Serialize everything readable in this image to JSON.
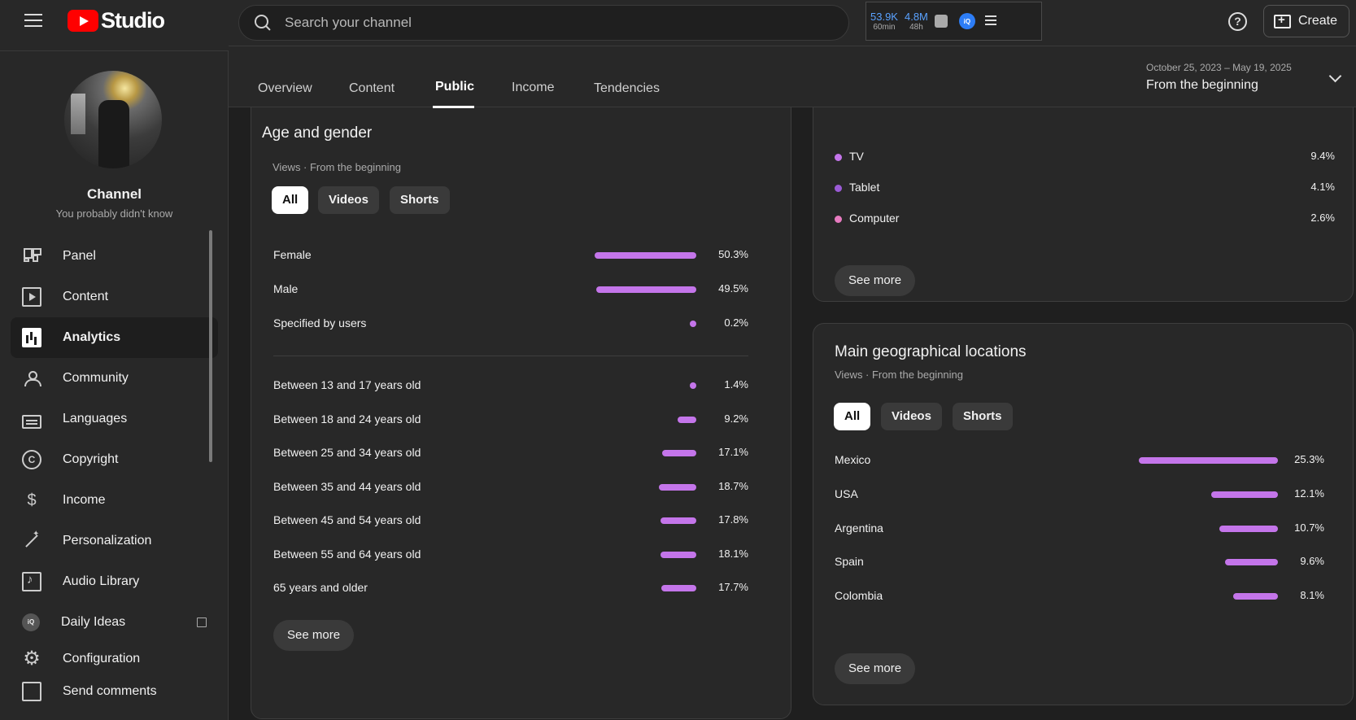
{
  "header": {
    "logo_text": "Studio",
    "search_placeholder": "Search your channel",
    "stats": [
      {
        "value": "53.9K",
        "label": "60min"
      },
      {
        "value": "4.8M",
        "label": "48h"
      }
    ],
    "iq_label": "iQ",
    "create_label": "Create"
  },
  "channel": {
    "name": "Channel",
    "subtitle": "You probably didn't know"
  },
  "nav": [
    {
      "label": "Panel"
    },
    {
      "label": "Content"
    },
    {
      "label": "Analytics"
    },
    {
      "label": "Community"
    },
    {
      "label": "Languages"
    },
    {
      "label": "Copyright"
    },
    {
      "label": "Income"
    },
    {
      "label": "Personalization"
    },
    {
      "label": "Audio Library"
    },
    {
      "label": "Daily Ideas"
    },
    {
      "label": "Configuration"
    },
    {
      "label": "Send comments"
    }
  ],
  "tabs": [
    "Overview",
    "Content",
    "Public",
    "Income",
    "Tendencies"
  ],
  "date_range": {
    "range": "October 25, 2023 – May 19, 2025",
    "label": "From the beginning"
  },
  "age_gender": {
    "title": "Age and gender",
    "subtitle": "Views · From the beginning",
    "chips": [
      "All",
      "Videos",
      "Shorts"
    ],
    "gender": [
      {
        "label": "Female",
        "value": "50.3%",
        "pct": 50.3
      },
      {
        "label": "Male",
        "value": "49.5%",
        "pct": 49.5
      },
      {
        "label": "Specified by users",
        "value": "0.2%",
        "pct": 0.2
      }
    ],
    "age": [
      {
        "label": "Between 13 and 17 years old",
        "value": "1.4%",
        "pct": 1.4
      },
      {
        "label": "Between 18 and 24 years old",
        "value": "9.2%",
        "pct": 9.2
      },
      {
        "label": "Between 25 and 34 years old",
        "value": "17.1%",
        "pct": 17.1
      },
      {
        "label": "Between 35 and 44 years old",
        "value": "18.7%",
        "pct": 18.7
      },
      {
        "label": "Between 45 and 54 years old",
        "value": "17.8%",
        "pct": 17.8
      },
      {
        "label": "Between 55 and 64 years old",
        "value": "18.1%",
        "pct": 18.1
      },
      {
        "label": "65 years and older",
        "value": "17.7%",
        "pct": 17.7
      }
    ],
    "see_more": "See more"
  },
  "devices": {
    "items": [
      {
        "label": "TV",
        "value": "9.4%",
        "color": "#c475ea"
      },
      {
        "label": "Tablet",
        "value": "4.1%",
        "color": "#9b5bd6"
      },
      {
        "label": "Computer",
        "value": "2.6%",
        "color": "#e77bc0"
      }
    ],
    "see_more": "See more"
  },
  "geo": {
    "title": "Main geographical locations",
    "subtitle": "Views · From the beginning",
    "chips": [
      "All",
      "Videos",
      "Shorts"
    ],
    "items": [
      {
        "label": "Mexico",
        "value": "25.3%",
        "pct": 25.3
      },
      {
        "label": "USA",
        "value": "12.1%",
        "pct": 12.1
      },
      {
        "label": "Argentina",
        "value": "10.7%",
        "pct": 10.7
      },
      {
        "label": "Spain",
        "value": "9.6%",
        "pct": 9.6
      },
      {
        "label": "Colombia",
        "value": "8.1%",
        "pct": 8.1
      }
    ],
    "see_more": "See more"
  }
}
